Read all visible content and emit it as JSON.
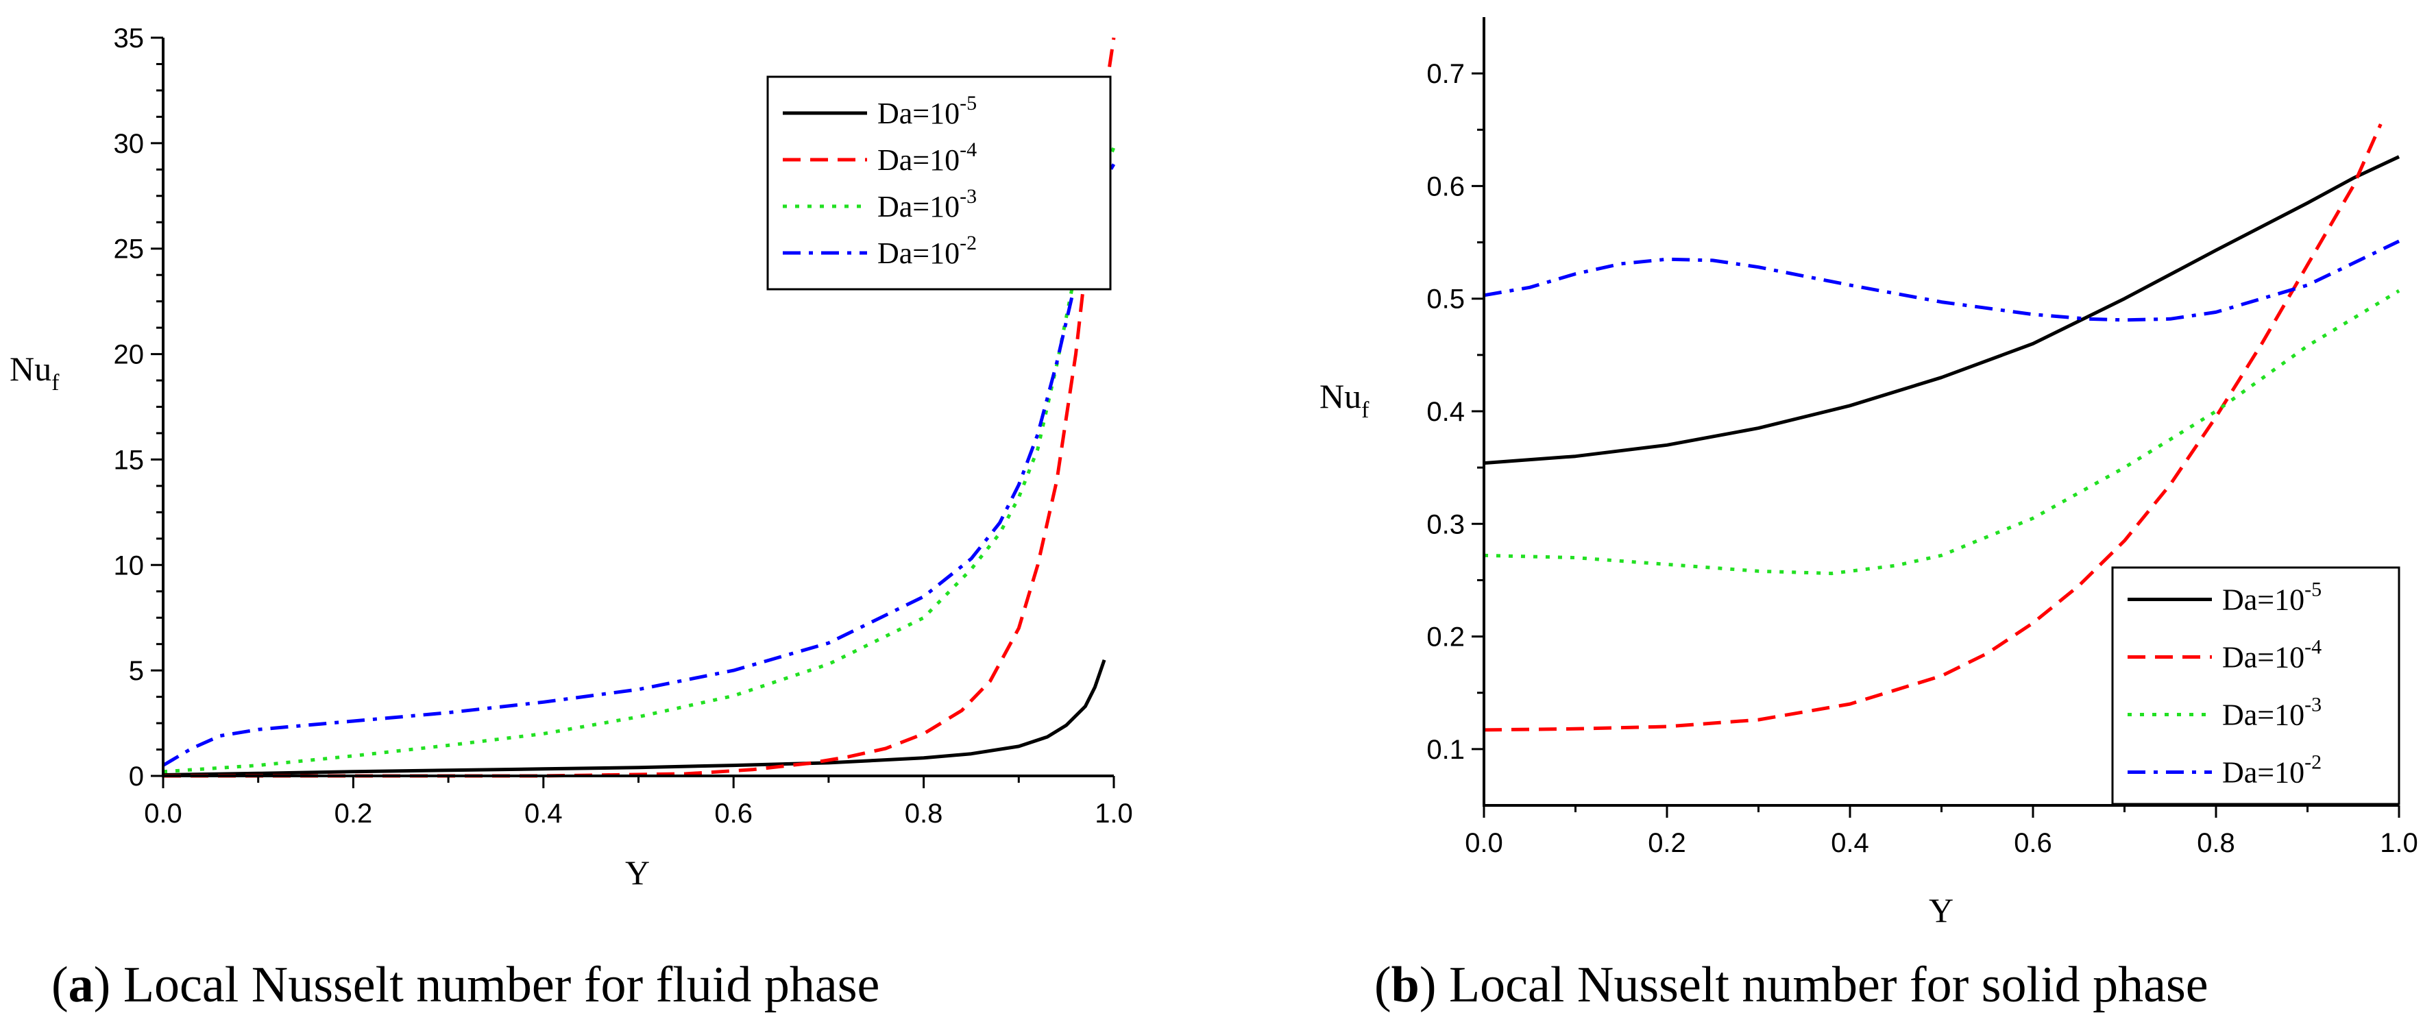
{
  "captions": [
    {
      "letter": "a",
      "text": " Local Nusselt number for fluid phase"
    },
    {
      "letter": "b",
      "text": " Local Nusselt number for solid phase"
    }
  ],
  "chart_data": [
    {
      "type": "line",
      "title": "",
      "xlabel": "Y",
      "ylabel": {
        "base": "Nu",
        "sub": "f"
      },
      "xlim": [
        0,
        1
      ],
      "ylim": [
        0,
        35
      ],
      "xticks": [
        0.0,
        0.2,
        0.4,
        0.6,
        0.8,
        1.0
      ],
      "xtick_labels": [
        "0.0",
        "0.2",
        "0.4",
        "0.6",
        "0.8",
        "1.0"
      ],
      "yticks": [
        0,
        5,
        10,
        15,
        20,
        25,
        30,
        35
      ],
      "ytick_labels": [
        "0",
        "5",
        "10",
        "15",
        "20",
        "25",
        "30",
        "35"
      ],
      "legend_position": "top-right",
      "series": [
        {
          "name": "Da=10-5",
          "label_base": "Da=10",
          "label_exp": "-5",
          "color": "#000000",
          "dash": "solid",
          "x": [
            0.0,
            0.1,
            0.2,
            0.3,
            0.4,
            0.5,
            0.6,
            0.7,
            0.8,
            0.85,
            0.9,
            0.93,
            0.95,
            0.97,
            0.98,
            0.99
          ],
          "y": [
            0.05,
            0.12,
            0.2,
            0.27,
            0.33,
            0.4,
            0.5,
            0.62,
            0.85,
            1.05,
            1.4,
            1.85,
            2.4,
            3.3,
            4.2,
            5.5
          ]
        },
        {
          "name": "Da=10-4",
          "label_base": "Da=10",
          "label_exp": "-4",
          "color": "#ff0000",
          "dash": "dashed",
          "x": [
            0.0,
            0.4,
            0.55,
            0.62,
            0.68,
            0.72,
            0.76,
            0.8,
            0.84,
            0.87,
            0.9,
            0.92,
            0.94,
            0.96,
            0.97,
            0.98,
            0.99,
            1.0
          ],
          "y": [
            0.0,
            0.0,
            0.1,
            0.3,
            0.6,
            0.9,
            1.3,
            2.0,
            3.1,
            4.5,
            7.0,
            10.0,
            14.0,
            20.0,
            24.0,
            28.5,
            32.0,
            35.0
          ]
        },
        {
          "name": "Da=10-3",
          "label_base": "Da=10",
          "label_exp": "-3",
          "color": "#22e022",
          "dash": "dotted",
          "x": [
            0.0,
            0.1,
            0.2,
            0.3,
            0.4,
            0.5,
            0.6,
            0.7,
            0.8,
            0.85,
            0.88,
            0.9,
            0.92,
            0.94,
            0.96,
            0.98,
            1.0
          ],
          "y": [
            0.2,
            0.5,
            0.95,
            1.45,
            2.0,
            2.8,
            3.8,
            5.3,
            7.5,
            9.8,
            11.5,
            13.2,
            15.5,
            19.5,
            24.0,
            27.5,
            29.8
          ]
        },
        {
          "name": "Da=10-2",
          "label_base": "Da=10",
          "label_exp": "-2",
          "color": "#0000ff",
          "dash": "dashdot",
          "x": [
            0.0,
            0.03,
            0.06,
            0.1,
            0.2,
            0.3,
            0.4,
            0.5,
            0.6,
            0.7,
            0.8,
            0.85,
            0.88,
            0.9,
            0.92,
            0.94,
            0.96,
            0.98,
            1.0
          ],
          "y": [
            0.5,
            1.3,
            1.9,
            2.2,
            2.6,
            3.0,
            3.5,
            4.1,
            5.0,
            6.3,
            8.5,
            10.3,
            12.0,
            13.8,
            16.2,
            19.6,
            23.5,
            27.5,
            29.0
          ]
        }
      ]
    },
    {
      "type": "line",
      "title": "",
      "xlabel": "Y",
      "ylabel": {
        "base": "Nu",
        "sub": "f"
      },
      "xlim": [
        0,
        1
      ],
      "ylim": [
        0.05,
        0.75
      ],
      "xticks": [
        0.0,
        0.2,
        0.4,
        0.6,
        0.8,
        1.0
      ],
      "xtick_labels": [
        "0.0",
        "0.2",
        "0.4",
        "0.6",
        "0.8",
        "1.0"
      ],
      "yticks": [
        0.1,
        0.2,
        0.3,
        0.4,
        0.5,
        0.6,
        0.7
      ],
      "ytick_labels": [
        "0.1",
        "0.2",
        "0.3",
        "0.4",
        "0.5",
        "0.6",
        "0.7"
      ],
      "legend_position": "bottom-right",
      "series": [
        {
          "name": "Da=10-5",
          "label_base": "Da=10",
          "label_exp": "-5",
          "color": "#000000",
          "dash": "solid",
          "x": [
            0.0,
            0.1,
            0.2,
            0.3,
            0.4,
            0.5,
            0.6,
            0.7,
            0.8,
            0.9,
            0.95,
            1.0
          ],
          "y": [
            0.354,
            0.36,
            0.37,
            0.385,
            0.405,
            0.43,
            0.46,
            0.5,
            0.543,
            0.585,
            0.607,
            0.626
          ]
        },
        {
          "name": "Da=10-4",
          "label_base": "Da=10",
          "label_exp": "-4",
          "color": "#ff0000",
          "dash": "dashed",
          "x": [
            0.0,
            0.1,
            0.2,
            0.3,
            0.4,
            0.5,
            0.55,
            0.6,
            0.65,
            0.7,
            0.75,
            0.8,
            0.85,
            0.9,
            0.95,
            0.98
          ],
          "y": [
            0.117,
            0.118,
            0.12,
            0.126,
            0.14,
            0.165,
            0.185,
            0.212,
            0.245,
            0.285,
            0.335,
            0.395,
            0.46,
            0.53,
            0.6,
            0.655
          ]
        },
        {
          "name": "Da=10-3",
          "label_base": "Da=10",
          "label_exp": "-3",
          "color": "#22e022",
          "dash": "dotted",
          "x": [
            0.0,
            0.1,
            0.2,
            0.3,
            0.38,
            0.45,
            0.5,
            0.6,
            0.7,
            0.8,
            0.9,
            1.0
          ],
          "y": [
            0.272,
            0.27,
            0.264,
            0.258,
            0.256,
            0.263,
            0.272,
            0.305,
            0.35,
            0.4,
            0.458,
            0.507
          ]
        },
        {
          "name": "Da=10-2",
          "label_base": "Da=10",
          "label_exp": "-2",
          "color": "#0000ff",
          "dash": "dashdot",
          "x": [
            0.0,
            0.05,
            0.1,
            0.15,
            0.2,
            0.25,
            0.3,
            0.4,
            0.5,
            0.6,
            0.66,
            0.7,
            0.75,
            0.8,
            0.9,
            1.0
          ],
          "y": [
            0.503,
            0.51,
            0.522,
            0.531,
            0.535,
            0.534,
            0.528,
            0.512,
            0.497,
            0.486,
            0.482,
            0.481,
            0.482,
            0.488,
            0.512,
            0.551
          ]
        }
      ]
    }
  ]
}
